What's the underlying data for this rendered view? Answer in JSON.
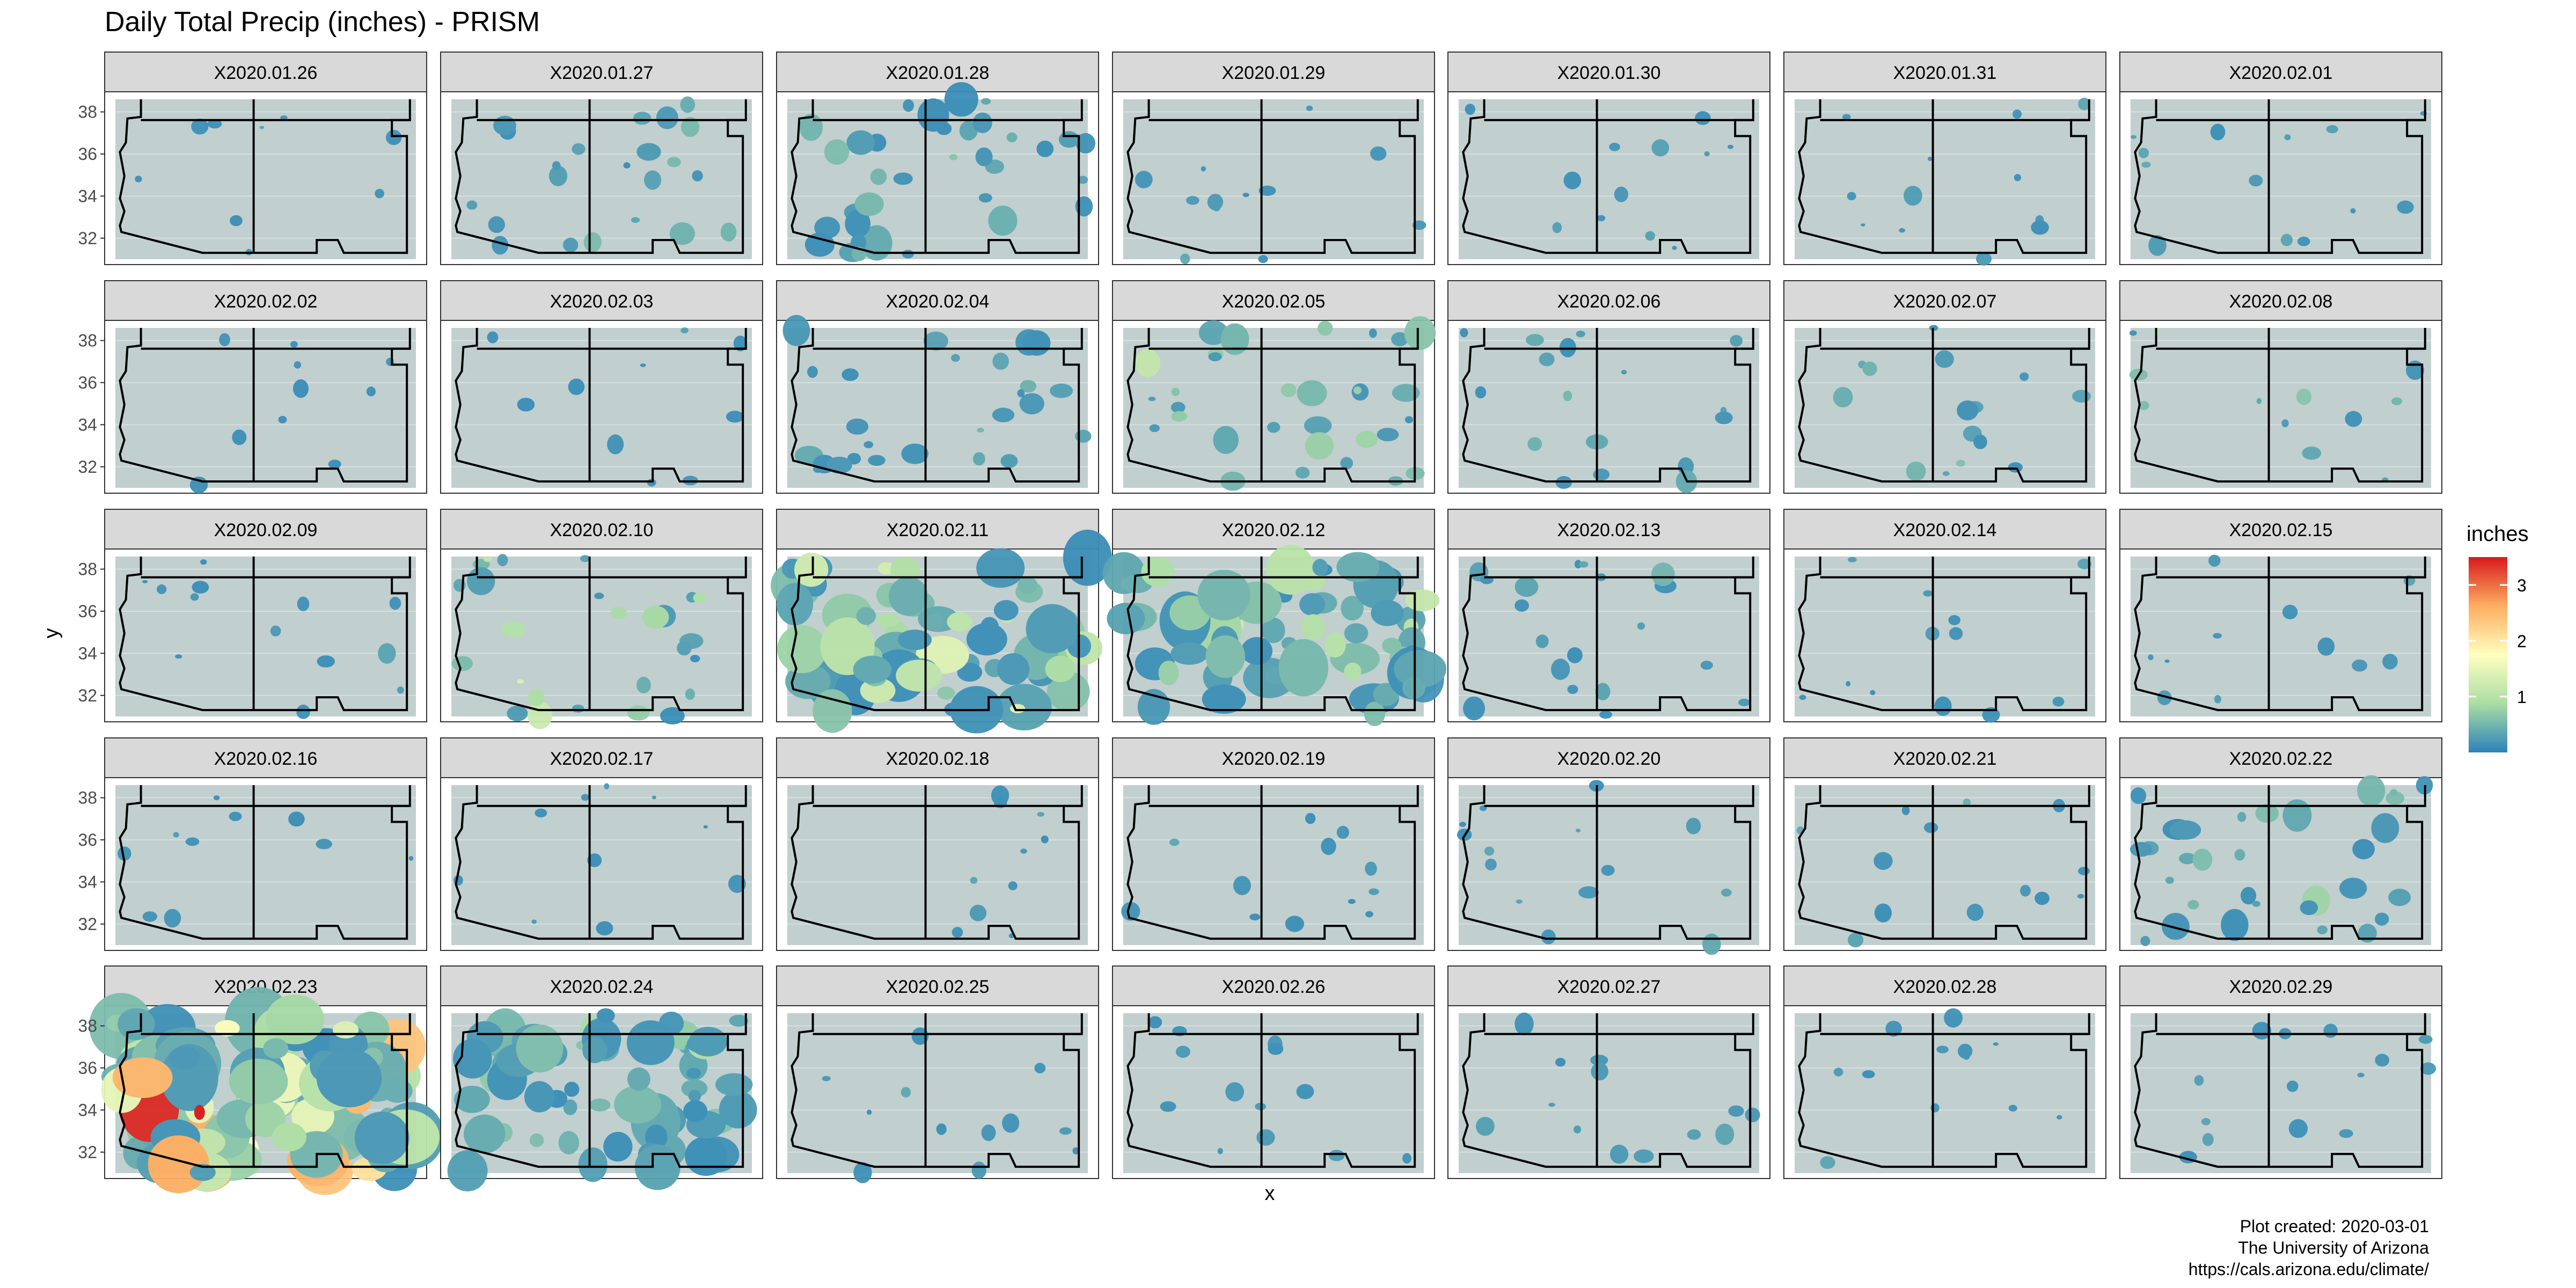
{
  "chart_data": {
    "type": "heatmap",
    "title": "Daily Total Precip (inches) - PRISM",
    "xlabel": "x",
    "ylabel": "y",
    "y_ticks": [
      "32",
      "34",
      "36",
      "38"
    ],
    "legend": {
      "title": "inches",
      "position": "right",
      "ticks": [
        "1",
        "2",
        "3"
      ],
      "range": [
        0,
        3.5
      ],
      "colors": [
        "#2b83ba",
        "#abdda4",
        "#ffffbf",
        "#fdae61",
        "#d7191c"
      ]
    },
    "panel_rows": 5,
    "panel_cols": 7,
    "panels": [
      {
        "label": "X2020.01.26",
        "coverage": 0.01,
        "peak": 0.2
      },
      {
        "label": "X2020.01.27",
        "coverage": 0.15,
        "peak": 0.6
      },
      {
        "label": "X2020.01.28",
        "coverage": 0.3,
        "peak": 0.6
      },
      {
        "label": "X2020.01.29",
        "coverage": 0.04,
        "peak": 0.3
      },
      {
        "label": "X2020.01.30",
        "coverage": 0.04,
        "peak": 0.3
      },
      {
        "label": "X2020.01.31",
        "coverage": 0.04,
        "peak": 0.3
      },
      {
        "label": "X2020.02.01",
        "coverage": 0.05,
        "peak": 0.4
      },
      {
        "label": "X2020.02.02",
        "coverage": 0.02,
        "peak": 0.2
      },
      {
        "label": "X2020.02.03",
        "coverage": 0.02,
        "peak": 0.2
      },
      {
        "label": "X2020.02.04",
        "coverage": 0.2,
        "peak": 0.5
      },
      {
        "label": "X2020.02.05",
        "coverage": 0.25,
        "peak": 1.4
      },
      {
        "label": "X2020.02.06",
        "coverage": 0.1,
        "peak": 0.6
      },
      {
        "label": "X2020.02.07",
        "coverage": 0.08,
        "peak": 0.9
      },
      {
        "label": "X2020.02.08",
        "coverage": 0.04,
        "peak": 1.0
      },
      {
        "label": "X2020.02.09",
        "coverage": 0.05,
        "peak": 0.3
      },
      {
        "label": "X2020.02.10",
        "coverage": 0.2,
        "peak": 1.4
      },
      {
        "label": "X2020.02.11",
        "coverage": 0.65,
        "peak": 1.7
      },
      {
        "label": "X2020.02.12",
        "coverage": 0.6,
        "peak": 1.5
      },
      {
        "label": "X2020.02.13",
        "coverage": 0.12,
        "peak": 0.5
      },
      {
        "label": "X2020.02.14",
        "coverage": 0.04,
        "peak": 0.3
      },
      {
        "label": "X2020.02.15",
        "coverage": 0.03,
        "peak": 0.3
      },
      {
        "label": "X2020.02.16",
        "coverage": 0.02,
        "peak": 0.2
      },
      {
        "label": "X2020.02.17",
        "coverage": 0.02,
        "peak": 0.2
      },
      {
        "label": "X2020.02.18",
        "coverage": 0.02,
        "peak": 0.3
      },
      {
        "label": "X2020.02.19",
        "coverage": 0.04,
        "peak": 0.3
      },
      {
        "label": "X2020.02.20",
        "coverage": 0.07,
        "peak": 0.6
      },
      {
        "label": "X2020.02.21",
        "coverage": 0.05,
        "peak": 0.4
      },
      {
        "label": "X2020.02.22",
        "coverage": 0.25,
        "peak": 1.1
      },
      {
        "label": "X2020.02.23",
        "coverage": 0.85,
        "peak": 3.5
      },
      {
        "label": "X2020.02.24",
        "coverage": 0.55,
        "peak": 0.9
      },
      {
        "label": "X2020.02.25",
        "coverage": 0.04,
        "peak": 0.3
      },
      {
        "label": "X2020.02.26",
        "coverage": 0.05,
        "peak": 0.3
      },
      {
        "label": "X2020.02.27",
        "coverage": 0.06,
        "peak": 0.3
      },
      {
        "label": "X2020.02.28",
        "coverage": 0.04,
        "peak": 0.3
      },
      {
        "label": "X2020.02.29",
        "coverage": 0.07,
        "peak": 0.3
      }
    ]
  },
  "caption": {
    "line1": "Plot created: 2020-03-01",
    "line2": "The University of Arizona",
    "line3": "https://cals.arizona.edu/climate/"
  },
  "colors": {
    "strip_bg": "#d9d9d9",
    "map_bg": "#c1cfcf",
    "low_precip": "#3d8fc8",
    "gridline": "#ebebeb"
  }
}
